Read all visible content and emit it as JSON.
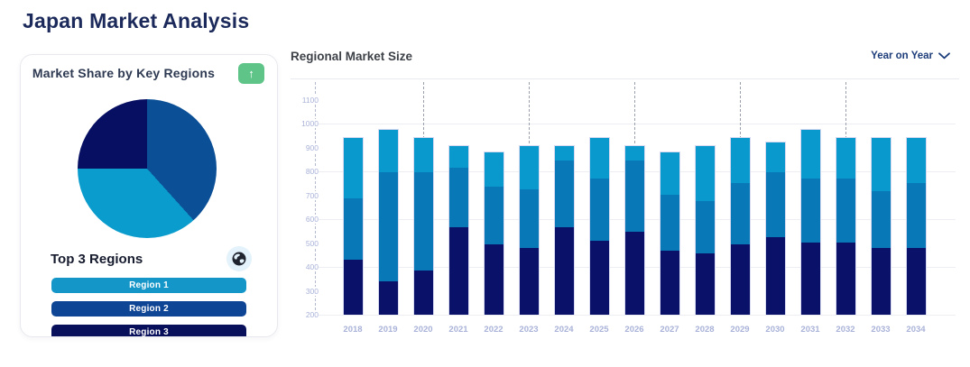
{
  "page": {
    "title": "Japan Market Analysis"
  },
  "left_card": {
    "title": "Market Share by Key Regions",
    "trend_button": {
      "icon": "arrow-up",
      "glyph": "↑",
      "bg_color": "#5ec488"
    },
    "top_regions": {
      "heading": "Top 3 Regions",
      "icon": "globe",
      "buttons": [
        {
          "label": "Region 1",
          "color": "#1496c8"
        },
        {
          "label": "Region 2",
          "color": "#0f4595"
        },
        {
          "label": "Region 3",
          "color": "#080f5b"
        }
      ]
    }
  },
  "right_panel": {
    "title": "Regional Market Size",
    "dropdown_label": "Year on Year"
  },
  "chart_data": [
    {
      "type": "pie",
      "title": "Market Share by Key Regions",
      "legend": "none",
      "slices": [
        {
          "label": "Region 2",
          "color": "#0b4f96",
          "start_deg": 0,
          "end_deg": 138,
          "share_pct": 38.3
        },
        {
          "label": "Region 1",
          "color": "#0a9ccd",
          "start_deg": 138,
          "end_deg": 270,
          "share_pct": 36.7
        },
        {
          "label": "Region 3",
          "color": "#070f63",
          "start_deg": 270,
          "end_deg": 360,
          "share_pct": 25.0
        }
      ]
    },
    {
      "type": "bar",
      "stacked": true,
      "title": "Regional Market Size",
      "categories": [
        "2018",
        "2019",
        "2020",
        "2021",
        "2022",
        "2023",
        "2024",
        "2025",
        "2026",
        "2027",
        "2028",
        "2029",
        "2030",
        "2031",
        "2032",
        "2033",
        "2034"
      ],
      "baseline": 200,
      "ylim": [
        200,
        1180
      ],
      "y_ticks": [
        1100,
        1000,
        900,
        800,
        700,
        600,
        500,
        400,
        300,
        200
      ],
      "gridlines": [
        1000,
        800,
        600,
        400,
        200
      ],
      "dashed_guides_at": [
        "2020",
        "2023",
        "2026",
        "2029",
        "2032"
      ],
      "grid": true,
      "legend_position": "none",
      "series": [
        {
          "name": "bottom-segment",
          "color": "#0a1168",
          "stack_top_values": [
            430,
            340,
            385,
            570,
            495,
            480,
            570,
            510,
            550,
            470,
            460,
            495,
            525,
            505,
            505,
            480,
            480
          ]
        },
        {
          "name": "middle-segment",
          "color": "#0878b6",
          "stack_top_values": [
            690,
            800,
            800,
            820,
            740,
            730,
            850,
            775,
            850,
            705,
            680,
            755,
            800,
            775,
            775,
            720,
            755
          ]
        },
        {
          "name": "top-segment",
          "color": "#0999cd",
          "stack_top_values": [
            945,
            980,
            945,
            910,
            885,
            910,
            910,
            945,
            910,
            885,
            910,
            945,
            925,
            980,
            945,
            945,
            945
          ]
        }
      ]
    }
  ]
}
